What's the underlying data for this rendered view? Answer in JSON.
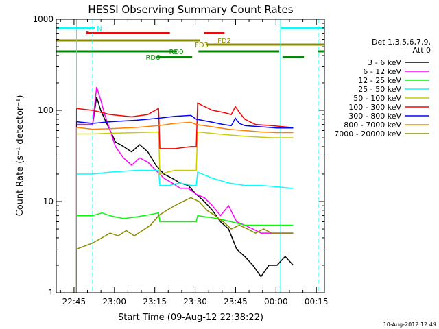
{
  "chart_data": {
    "type": "line",
    "title": "HESSI Observing Summary Count Rates",
    "xlabel": "Start Time (09-Aug-12 22:38:22)",
    "ylabel": "Count Rate (s⁻¹ detector⁻¹)",
    "yscale": "log",
    "ylim": [
      1,
      1000
    ],
    "xlim": [
      "22:38:22",
      "00:18:00"
    ],
    "x_unit": "minutes after 22:38:22",
    "xlim_minutes": [
      0,
      99.6
    ],
    "y_tick_labels": [
      "1",
      "10",
      "100",
      "1000"
    ],
    "x_tick_labels": [
      "22:45",
      "23:00",
      "23:15",
      "23:30",
      "23:45",
      "00:00",
      "00:15"
    ],
    "x_tick_minutes": [
      6.6,
      21.6,
      36.6,
      51.6,
      66.6,
      81.6,
      96.6
    ],
    "timestamp": "10-Aug-2012 12:49",
    "legend": {
      "placement": "right",
      "header_line1": "Det 1,3,5,6,7,9,",
      "header_line2": "Att 0"
    },
    "flag_bars": [
      {
        "label": "N",
        "color": "#00ffff",
        "segments": [
          [
            0,
            14.3
          ],
          [
            83.3,
            99.6
          ]
        ]
      },
      {
        "label": "F",
        "color": "#ff0000",
        "segments": [
          [
            11,
            42.2
          ],
          [
            55,
            62.5
          ]
        ]
      },
      {
        "label": "FD2",
        "color": "#8b8b00",
        "segments": [
          [
            0,
            53.5
          ]
        ]
      },
      {
        "label": "FD3",
        "color": "#8b8b00",
        "segments": [
          [
            55.5,
            99.6
          ]
        ]
      },
      {
        "label": "RD0",
        "color": "#008b00",
        "segments": [
          [
            0,
            44.8
          ],
          [
            52.8,
            82.8
          ],
          [
            97.3,
            99.6
          ]
        ]
      },
      {
        "label": "RD6",
        "color": "#008b00",
        "segments": [
          [
            37.5,
            50.5
          ],
          [
            84,
            92
          ]
        ]
      }
    ],
    "vlines": [
      {
        "x": 7.5,
        "color": "#00ffff",
        "style": "solid"
      },
      {
        "x": 13.5,
        "color": "#00ffff",
        "style": "dashed"
      },
      {
        "x": 83.3,
        "color": "#00ffff",
        "style": "solid"
      },
      {
        "x": 97.3,
        "color": "#00ffff",
        "style": "dashed"
      }
    ],
    "series": [
      {
        "name": "3 - 6 keV",
        "color": "#000000",
        "x": [
          7.5,
          13.5,
          15,
          16.5,
          18,
          20,
          22,
          25,
          28,
          31,
          34,
          37,
          40,
          43,
          46,
          49,
          52,
          55,
          58,
          61,
          64,
          67,
          70,
          73,
          76,
          79,
          82,
          85,
          88
        ],
        "y": [
          70,
          70,
          140,
          100,
          80,
          60,
          45,
          40,
          35,
          42,
          35,
          25,
          20,
          18,
          16,
          15,
          12,
          10,
          8,
          6,
          5,
          3,
          2.5,
          2,
          1.5,
          2,
          2,
          2.5,
          2
        ]
      },
      {
        "name": "6 - 12 keV",
        "color": "#ff00ff",
        "x": [
          7.5,
          13.5,
          15,
          16.5,
          18,
          20,
          22,
          25,
          28,
          31,
          34,
          37,
          40,
          43,
          46,
          49,
          52,
          55,
          58,
          61,
          64,
          67,
          70,
          73,
          76,
          79,
          82,
          85,
          88
        ],
        "y": [
          70,
          70,
          180,
          130,
          90,
          60,
          40,
          30,
          25,
          30,
          27,
          22,
          18,
          16,
          14,
          14,
          12,
          11,
          9,
          7,
          9,
          6,
          5.5,
          5,
          4.5,
          4.5,
          4.5,
          4.5,
          4.5
        ]
      },
      {
        "name": "12 - 25 keV",
        "color": "#00ff00",
        "x": [
          7.5,
          13.5,
          17,
          20,
          25,
          30,
          35,
          38,
          38.5,
          45,
          50,
          52,
          52.5,
          60,
          65,
          70,
          75,
          80,
          84,
          88
        ],
        "y": [
          7,
          7,
          7.5,
          7,
          6.5,
          6.8,
          7.2,
          7.5,
          6,
          6,
          6,
          6,
          7,
          6.5,
          6,
          5.5,
          5.5,
          5.5,
          5.5,
          5.5
        ]
      },
      {
        "name": "25 - 50 keV",
        "color": "#00ffff",
        "x": [
          7.5,
          13.5,
          20,
          30,
          38,
          38.5,
          42,
          46,
          50,
          52,
          52.5,
          58,
          64,
          70,
          76,
          82,
          87,
          88
        ],
        "y": [
          20,
          20,
          21,
          22,
          22,
          15,
          15,
          16,
          15,
          15,
          21,
          18,
          16,
          15,
          15,
          14.5,
          14,
          14
        ]
      },
      {
        "name": "50 - 100 keV",
        "color": "#cccc00",
        "x": [
          7.5,
          13.5,
          20,
          30,
          38,
          38.5,
          44,
          52,
          52.5,
          60,
          70,
          80,
          87,
          88
        ],
        "y": [
          55,
          55,
          56,
          57,
          58,
          20,
          22,
          22,
          58,
          55,
          52,
          50,
          50,
          50
        ]
      },
      {
        "name": "100 - 300 keV",
        "color": "#ff0000",
        "x": [
          7.5,
          13.5,
          20,
          28,
          34,
          38,
          38.5,
          44,
          50,
          52,
          52.5,
          58,
          62,
          65,
          66.5,
          68,
          70,
          74,
          80,
          87,
          88
        ],
        "y": [
          105,
          100,
          90,
          85,
          90,
          105,
          38,
          38,
          40,
          40,
          120,
          100,
          95,
          90,
          110,
          95,
          80,
          70,
          68,
          65,
          65
        ]
      },
      {
        "name": "300 - 800 keV",
        "color": "#0000ff",
        "x": [
          7.5,
          13.5,
          20,
          30,
          38,
          44,
          50,
          52,
          58,
          62,
          65,
          66.5,
          68,
          70,
          76,
          82,
          87,
          88
        ],
        "y": [
          75,
          72,
          75,
          78,
          82,
          86,
          88,
          80,
          74,
          70,
          68,
          82,
          72,
          68,
          66,
          64,
          64,
          64
        ]
      },
      {
        "name": "800 - 7000 keV",
        "color": "#ff8000",
        "x": [
          7.5,
          13.5,
          20,
          30,
          38,
          44,
          50,
          52,
          58,
          64,
          70,
          76,
          82,
          87,
          88
        ],
        "y": [
          65,
          62,
          63,
          65,
          68,
          72,
          74,
          70,
          66,
          62,
          60,
          58,
          57,
          57,
          57
        ]
      },
      {
        "name": "7000 - 20000 keV",
        "color": "#8b8b00",
        "x": [
          7.5,
          13.5,
          17,
          20,
          23,
          26,
          29,
          32,
          35,
          38,
          41,
          44,
          47,
          50,
          53,
          56,
          59,
          62,
          65,
          68,
          71,
          74,
          77,
          80,
          84,
          88
        ],
        "y": [
          3,
          3.5,
          4,
          4.5,
          4.2,
          4.8,
          4.2,
          4.8,
          5.5,
          7,
          8,
          9,
          10,
          11,
          10,
          8,
          7,
          6,
          5,
          5.5,
          5,
          4.5,
          5,
          4.5,
          4.5,
          4.5
        ]
      }
    ]
  }
}
